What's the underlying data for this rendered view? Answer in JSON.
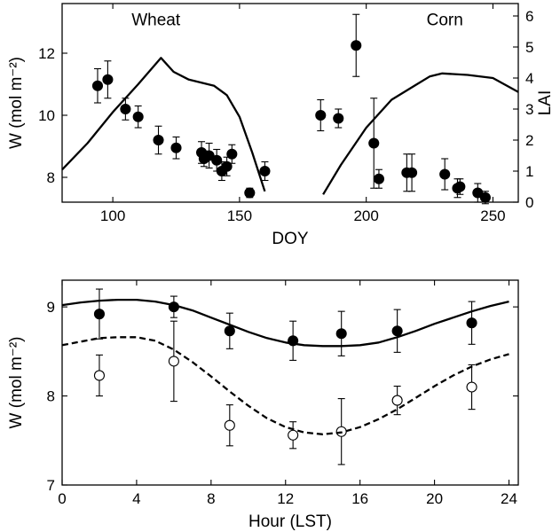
{
  "chart_data": [
    {
      "type": "scatter",
      "xlabel": "DOY",
      "ylabel": "W (mol m⁻²)",
      "y2label": "LAI",
      "xlim": [
        80,
        260
      ],
      "ylim": [
        7.2,
        13.6
      ],
      "y2lim": [
        0,
        6.4
      ],
      "xticks": [
        100,
        150,
        200,
        250
      ],
      "yticks": [
        8,
        10,
        12
      ],
      "y2ticks": [
        0,
        1,
        2,
        3,
        4,
        5,
        6
      ],
      "grid": false,
      "annotations": [
        {
          "text": "Wheat",
          "x": 117,
          "y": 12.9
        },
        {
          "text": "Corn",
          "x": 231,
          "y": 12.9
        }
      ],
      "series": [
        {
          "kind": "points",
          "marker": "filled-circle",
          "x": [
            94,
            98,
            105,
            110,
            118,
            125,
            135,
            136,
            138,
            141,
            143,
            145,
            147,
            154,
            160,
            182,
            189,
            196,
            203,
            205,
            216,
            218,
            231,
            236,
            237,
            244,
            247
          ],
          "y": [
            10.95,
            11.15,
            10.2,
            9.95,
            9.2,
            8.95,
            8.8,
            8.6,
            8.7,
            8.55,
            8.2,
            8.35,
            8.75,
            7.5,
            8.2,
            10.0,
            9.9,
            12.25,
            9.1,
            7.95,
            8.15,
            8.15,
            8.1,
            7.65,
            7.7,
            7.5,
            7.35
          ],
          "yerr": [
            0.55,
            0.6,
            0.35,
            0.35,
            0.45,
            0.35,
            0.35,
            0.25,
            0.4,
            0.35,
            0.3,
            0.3,
            0.3,
            0.15,
            0.3,
            0.5,
            0.3,
            1.0,
            1.45,
            0.3,
            0.6,
            0.6,
            0.5,
            0.3,
            0.25,
            0.3,
            0.2
          ]
        },
        {
          "kind": "line",
          "axis": "y2",
          "x": [
            80,
            90,
            100,
            110,
            119,
            124,
            130,
            140,
            145,
            150,
            155,
            160
          ],
          "y": [
            1.05,
            1.9,
            2.9,
            3.8,
            4.65,
            4.2,
            3.95,
            3.75,
            3.45,
            2.75,
            1.6,
            0.35
          ]
        },
        {
          "kind": "line",
          "axis": "y2",
          "x": [
            183,
            190,
            200,
            210,
            220,
            225,
            230,
            240,
            250,
            260
          ],
          "y": [
            0.25,
            1.2,
            2.4,
            3.3,
            3.8,
            4.05,
            4.15,
            4.1,
            4.0,
            3.55
          ]
        }
      ]
    },
    {
      "type": "scatter",
      "xlabel": "Hour (LST)",
      "ylabel": "W (mol m⁻²)",
      "xlim": [
        0,
        24.5
      ],
      "ylim": [
        7,
        9.3
      ],
      "xticks": [
        0,
        4,
        8,
        12,
        16,
        20,
        24
      ],
      "yticks": [
        7,
        8,
        9
      ],
      "grid": false,
      "series": [
        {
          "kind": "points",
          "marker": "filled-circle",
          "x": [
            2,
            6,
            9,
            12.4,
            15,
            18,
            22
          ],
          "y": [
            8.92,
            9.0,
            8.73,
            8.62,
            8.7,
            8.73,
            8.82
          ],
          "yerr": [
            0.28,
            0.12,
            0.2,
            0.22,
            0.25,
            0.24,
            0.24
          ]
        },
        {
          "kind": "points",
          "marker": "open-circle",
          "x": [
            2,
            6,
            9,
            12.4,
            15,
            18,
            22
          ],
          "y": [
            8.23,
            8.39,
            7.67,
            7.56,
            7.6,
            7.95,
            8.1
          ],
          "yerr": [
            0.23,
            0.45,
            0.23,
            0.15,
            0.37,
            0.16,
            0.25
          ]
        },
        {
          "kind": "line",
          "style": "solid",
          "x": [
            0,
            1,
            2,
            3,
            4,
            5,
            6,
            7,
            8,
            9,
            10,
            11,
            12,
            13,
            14,
            15,
            16,
            17,
            18,
            19,
            20,
            21,
            22,
            23,
            24
          ],
          "y": [
            9.02,
            9.05,
            9.07,
            9.08,
            9.08,
            9.06,
            9.02,
            8.96,
            8.88,
            8.8,
            8.72,
            8.65,
            8.6,
            8.57,
            8.56,
            8.56,
            8.57,
            8.6,
            8.66,
            8.73,
            8.81,
            8.88,
            8.95,
            9.01,
            9.06
          ]
        },
        {
          "kind": "line",
          "style": "dashed",
          "x": [
            0,
            1,
            2,
            3,
            4,
            5,
            6,
            7,
            8,
            9,
            10,
            11,
            12,
            13,
            14,
            15,
            16,
            17,
            18,
            19,
            20,
            21,
            22,
            23,
            24
          ],
          "y": [
            8.57,
            8.61,
            8.65,
            8.66,
            8.66,
            8.62,
            8.52,
            8.38,
            8.22,
            8.05,
            7.89,
            7.75,
            7.65,
            7.59,
            7.57,
            7.59,
            7.65,
            7.74,
            7.85,
            7.98,
            8.11,
            8.23,
            8.33,
            8.41,
            8.47
          ]
        }
      ]
    }
  ]
}
